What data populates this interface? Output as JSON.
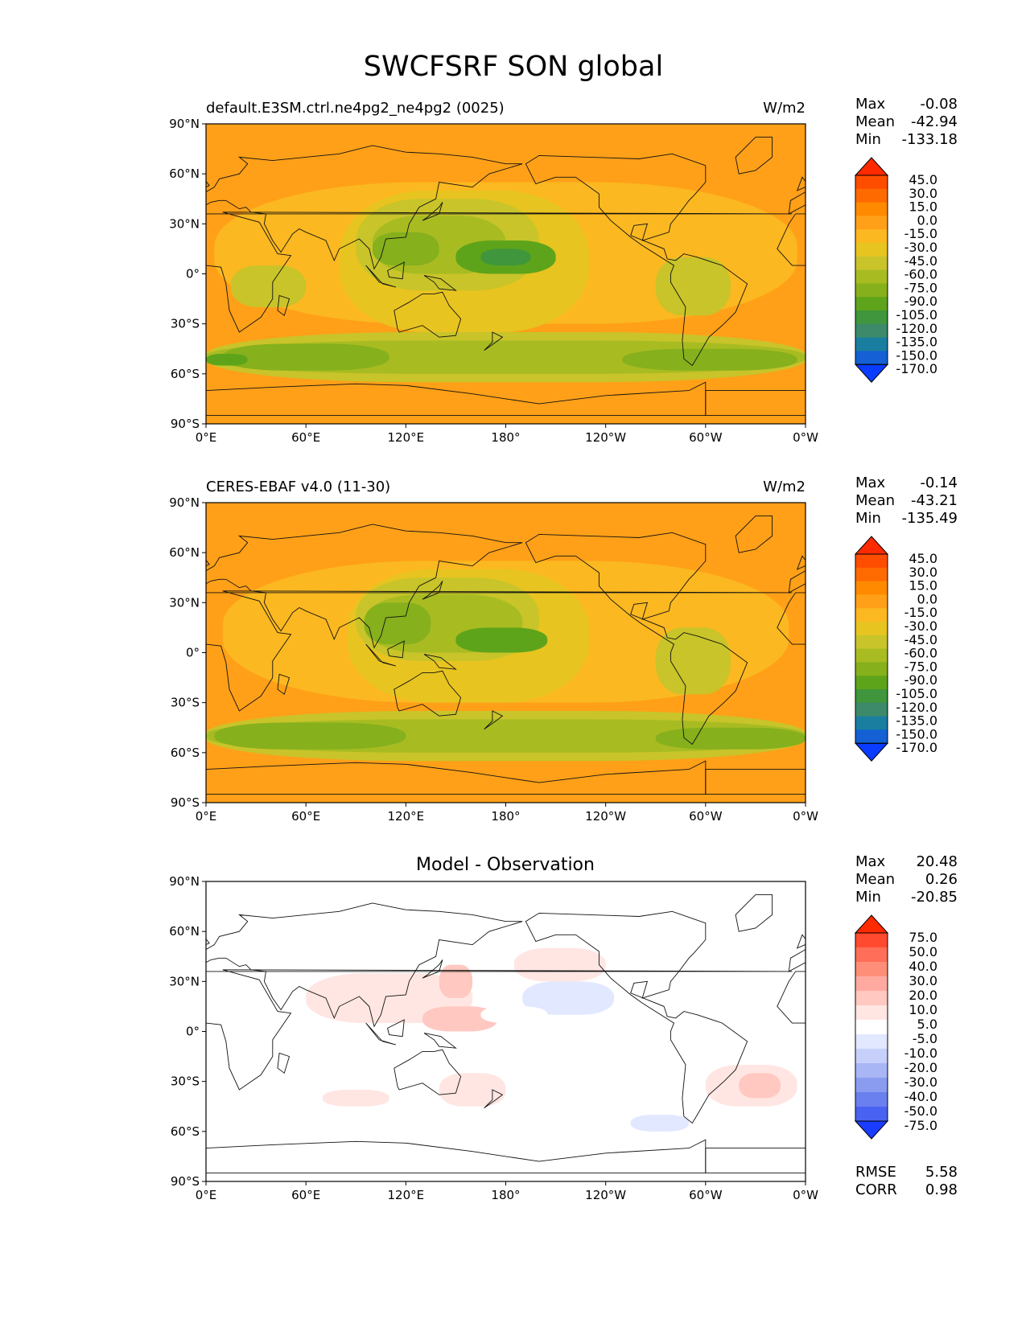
{
  "figure": {
    "title": "SWCFSRF SON global"
  },
  "chart_data": [
    {
      "type": "heatmap",
      "title": "default.E3SM.ctrl.ne4pg2_ne4pg2 (0025)",
      "units": "W/m2",
      "x_ticks": [
        "0°E",
        "60°E",
        "120°E",
        "180°",
        "120°W",
        "60°W",
        "0°W"
      ],
      "y_ticks": [
        "90°N",
        "60°N",
        "30°N",
        "0°",
        "30°S",
        "60°S",
        "90°S"
      ],
      "x_range": [
        0,
        360
      ],
      "y_range": [
        -90,
        90
      ],
      "stats": {
        "max_label": "Max",
        "max": "-0.08",
        "mean_label": "Mean",
        "mean": "-42.94",
        "min_label": "Min",
        "min": "-133.18"
      },
      "colorbar": {
        "levels": [
          "45.0",
          "30.0",
          "15.0",
          "0.0",
          "-15.0",
          "-30.0",
          "-45.0",
          "-60.0",
          "-75.0",
          "-90.0",
          "-105.0",
          "-120.0",
          "-135.0",
          "-150.0",
          "-170.0"
        ],
        "colors": [
          "#ff2a00",
          "#ff4d00",
          "#ff6a00",
          "#ff8a00",
          "#ffa018",
          "#fbb820",
          "#e8c420",
          "#c8c42a",
          "#a8bc22",
          "#86b01c",
          "#5ea41a",
          "#3f963c",
          "#3c8a6a",
          "#1a7ea0",
          "#1460d4",
          "#0a3cff"
        ],
        "extend": "both"
      },
      "contour_regions": [
        {
          "lon": [
            0,
            360
          ],
          "lat": [
            -90,
            90
          ],
          "value": -15
        },
        {
          "lon": [
            5,
            355
          ],
          "lat": [
            -30,
            55
          ],
          "value": -30
        },
        {
          "lon": [
            80,
            230
          ],
          "lat": [
            -35,
            50
          ],
          "value": -45
        },
        {
          "lon": [
            90,
            200
          ],
          "lat": [
            -10,
            45
          ],
          "value": -60
        },
        {
          "lon": [
            100,
            180
          ],
          "lat": [
            0,
            35
          ],
          "value": -75
        },
        {
          "lon": [
            100,
            140
          ],
          "lat": [
            5,
            25
          ],
          "value": -90
        },
        {
          "lon": [
            150,
            210
          ],
          "lat": [
            0,
            20
          ],
          "value": -105
        },
        {
          "lon": [
            165,
            195
          ],
          "lat": [
            5,
            15
          ],
          "value": -120
        },
        {
          "lon": [
            270,
            315
          ],
          "lat": [
            -25,
            10
          ],
          "value": -60
        },
        {
          "lon": [
            15,
            60
          ],
          "lat": [
            -20,
            5
          ],
          "value": -60
        },
        {
          "lon": [
            0,
            360
          ],
          "lat": [
            -65,
            -35
          ],
          "value": -60
        },
        {
          "lon": [
            0,
            360
          ],
          "lat": [
            -60,
            -40
          ],
          "value": -75
        },
        {
          "lon": [
            10,
            110
          ],
          "lat": [
            -58,
            -42
          ],
          "value": -90
        },
        {
          "lon": [
            250,
            355
          ],
          "lat": [
            -58,
            -45
          ],
          "value": -90
        },
        {
          "lon": [
            0,
            25
          ],
          "lat": [
            -55,
            -48
          ],
          "value": -105
        }
      ]
    },
    {
      "type": "heatmap",
      "title": "CERES-EBAF v4.0 (11-30)",
      "units": "W/m2",
      "x_ticks": [
        "0°E",
        "60°E",
        "120°E",
        "180°",
        "120°W",
        "60°W",
        "0°W"
      ],
      "y_ticks": [
        "90°N",
        "60°N",
        "30°N",
        "0°",
        "30°S",
        "60°S",
        "90°S"
      ],
      "x_range": [
        0,
        360
      ],
      "y_range": [
        -90,
        90
      ],
      "stats": {
        "max_label": "Max",
        "max": "-0.14",
        "mean_label": "Mean",
        "mean": "-43.21",
        "min_label": "Min",
        "min": "-135.49"
      },
      "colorbar": {
        "levels": [
          "45.0",
          "30.0",
          "15.0",
          "0.0",
          "-15.0",
          "-30.0",
          "-45.0",
          "-60.0",
          "-75.0",
          "-90.0",
          "-105.0",
          "-120.0",
          "-135.0",
          "-150.0",
          "-170.0"
        ],
        "colors": [
          "#ff2a00",
          "#ff4d00",
          "#ff6a00",
          "#ff8a00",
          "#ffa018",
          "#fbb820",
          "#e8c420",
          "#c8c42a",
          "#a8bc22",
          "#86b01c",
          "#5ea41a",
          "#3f963c",
          "#3c8a6a",
          "#1a7ea0",
          "#1460d4",
          "#0a3cff"
        ],
        "extend": "both"
      },
      "contour_regions": [
        {
          "lon": [
            0,
            360
          ],
          "lat": [
            -90,
            90
          ],
          "value": -15
        },
        {
          "lon": [
            10,
            350
          ],
          "lat": [
            -30,
            55
          ],
          "value": -30
        },
        {
          "lon": [
            85,
            230
          ],
          "lat": [
            -30,
            50
          ],
          "value": -45
        },
        {
          "lon": [
            90,
            200
          ],
          "lat": [
            -5,
            45
          ],
          "value": -60
        },
        {
          "lon": [
            95,
            190
          ],
          "lat": [
            0,
            35
          ],
          "value": -75
        },
        {
          "lon": [
            95,
            135
          ],
          "lat": [
            5,
            30
          ],
          "value": -90
        },
        {
          "lon": [
            150,
            205
          ],
          "lat": [
            0,
            15
          ],
          "value": -105
        },
        {
          "lon": [
            270,
            315
          ],
          "lat": [
            -25,
            15
          ],
          "value": -60
        },
        {
          "lon": [
            0,
            360
          ],
          "lat": [
            -65,
            -35
          ],
          "value": -60
        },
        {
          "lon": [
            0,
            360
          ],
          "lat": [
            -60,
            -40
          ],
          "value": -75
        },
        {
          "lon": [
            5,
            120
          ],
          "lat": [
            -58,
            -42
          ],
          "value": -90
        },
        {
          "lon": [
            270,
            360
          ],
          "lat": [
            -58,
            -45
          ],
          "value": -90
        }
      ]
    },
    {
      "type": "heatmap",
      "title": "Model - Observation",
      "units": "",
      "x_ticks": [
        "0°E",
        "60°E",
        "120°E",
        "180°",
        "120°W",
        "60°W",
        "0°W"
      ],
      "y_ticks": [
        "90°N",
        "60°N",
        "30°N",
        "0°",
        "30°S",
        "60°S",
        "90°S"
      ],
      "x_range": [
        0,
        360
      ],
      "y_range": [
        -90,
        90
      ],
      "stats": {
        "max_label": "Max",
        "max": "20.48",
        "mean_label": "Mean",
        "mean": "0.26",
        "min_label": "Min",
        "min": "-20.85"
      },
      "metrics": {
        "rmse_label": "RMSE",
        "rmse": "5.58",
        "corr_label": "CORR",
        "corr": "0.98"
      },
      "colorbar": {
        "levels": [
          "75.0",
          "50.0",
          "40.0",
          "30.0",
          "20.0",
          "10.0",
          "5.0",
          "-5.0",
          "-10.0",
          "-20.0",
          "-30.0",
          "-40.0",
          "-50.0",
          "-75.0"
        ],
        "colors": [
          "#ff2a00",
          "#ff4a30",
          "#ff6e58",
          "#ff8e78",
          "#ffaaa0",
          "#ffc8c0",
          "#ffe6e2",
          "#ffffff",
          "#e2e8ff",
          "#c6d0fb",
          "#a8b6f5",
          "#8a9cf0",
          "#6a80ef",
          "#4a62f2",
          "#1a3cff"
        ],
        "extend": "both"
      },
      "contour_regions": [
        {
          "lon": [
            60,
            160
          ],
          "lat": [
            5,
            35
          ],
          "value": 5
        },
        {
          "lon": [
            140,
            160
          ],
          "lat": [
            20,
            40
          ],
          "value": 10
        },
        {
          "lon": [
            130,
            175
          ],
          "lat": [
            0,
            15
          ],
          "value": 10
        },
        {
          "lon": [
            185,
            240
          ],
          "lat": [
            30,
            50
          ],
          "value": 5
        },
        {
          "lon": [
            190,
            245
          ],
          "lat": [
            10,
            30
          ],
          "value": -10
        },
        {
          "lon": [
            5,
            60
          ],
          "lat": [
            -25,
            10
          ],
          "value": -5
        },
        {
          "lon": [
            255,
            290
          ],
          "lat": [
            -60,
            -50
          ],
          "value": -10
        },
        {
          "lon": [
            300,
            355
          ],
          "lat": [
            -45,
            -20
          ],
          "value": 5
        },
        {
          "lon": [
            320,
            345
          ],
          "lat": [
            -40,
            -25
          ],
          "value": 10
        },
        {
          "lon": [
            140,
            180
          ],
          "lat": [
            -45,
            -25
          ],
          "value": 5
        },
        {
          "lon": [
            165,
            205
          ],
          "lat": [
            15,
            5
          ],
          "value": -5
        },
        {
          "lon": [
            70,
            110
          ],
          "lat": [
            -45,
            -35
          ],
          "value": 5
        }
      ]
    }
  ]
}
